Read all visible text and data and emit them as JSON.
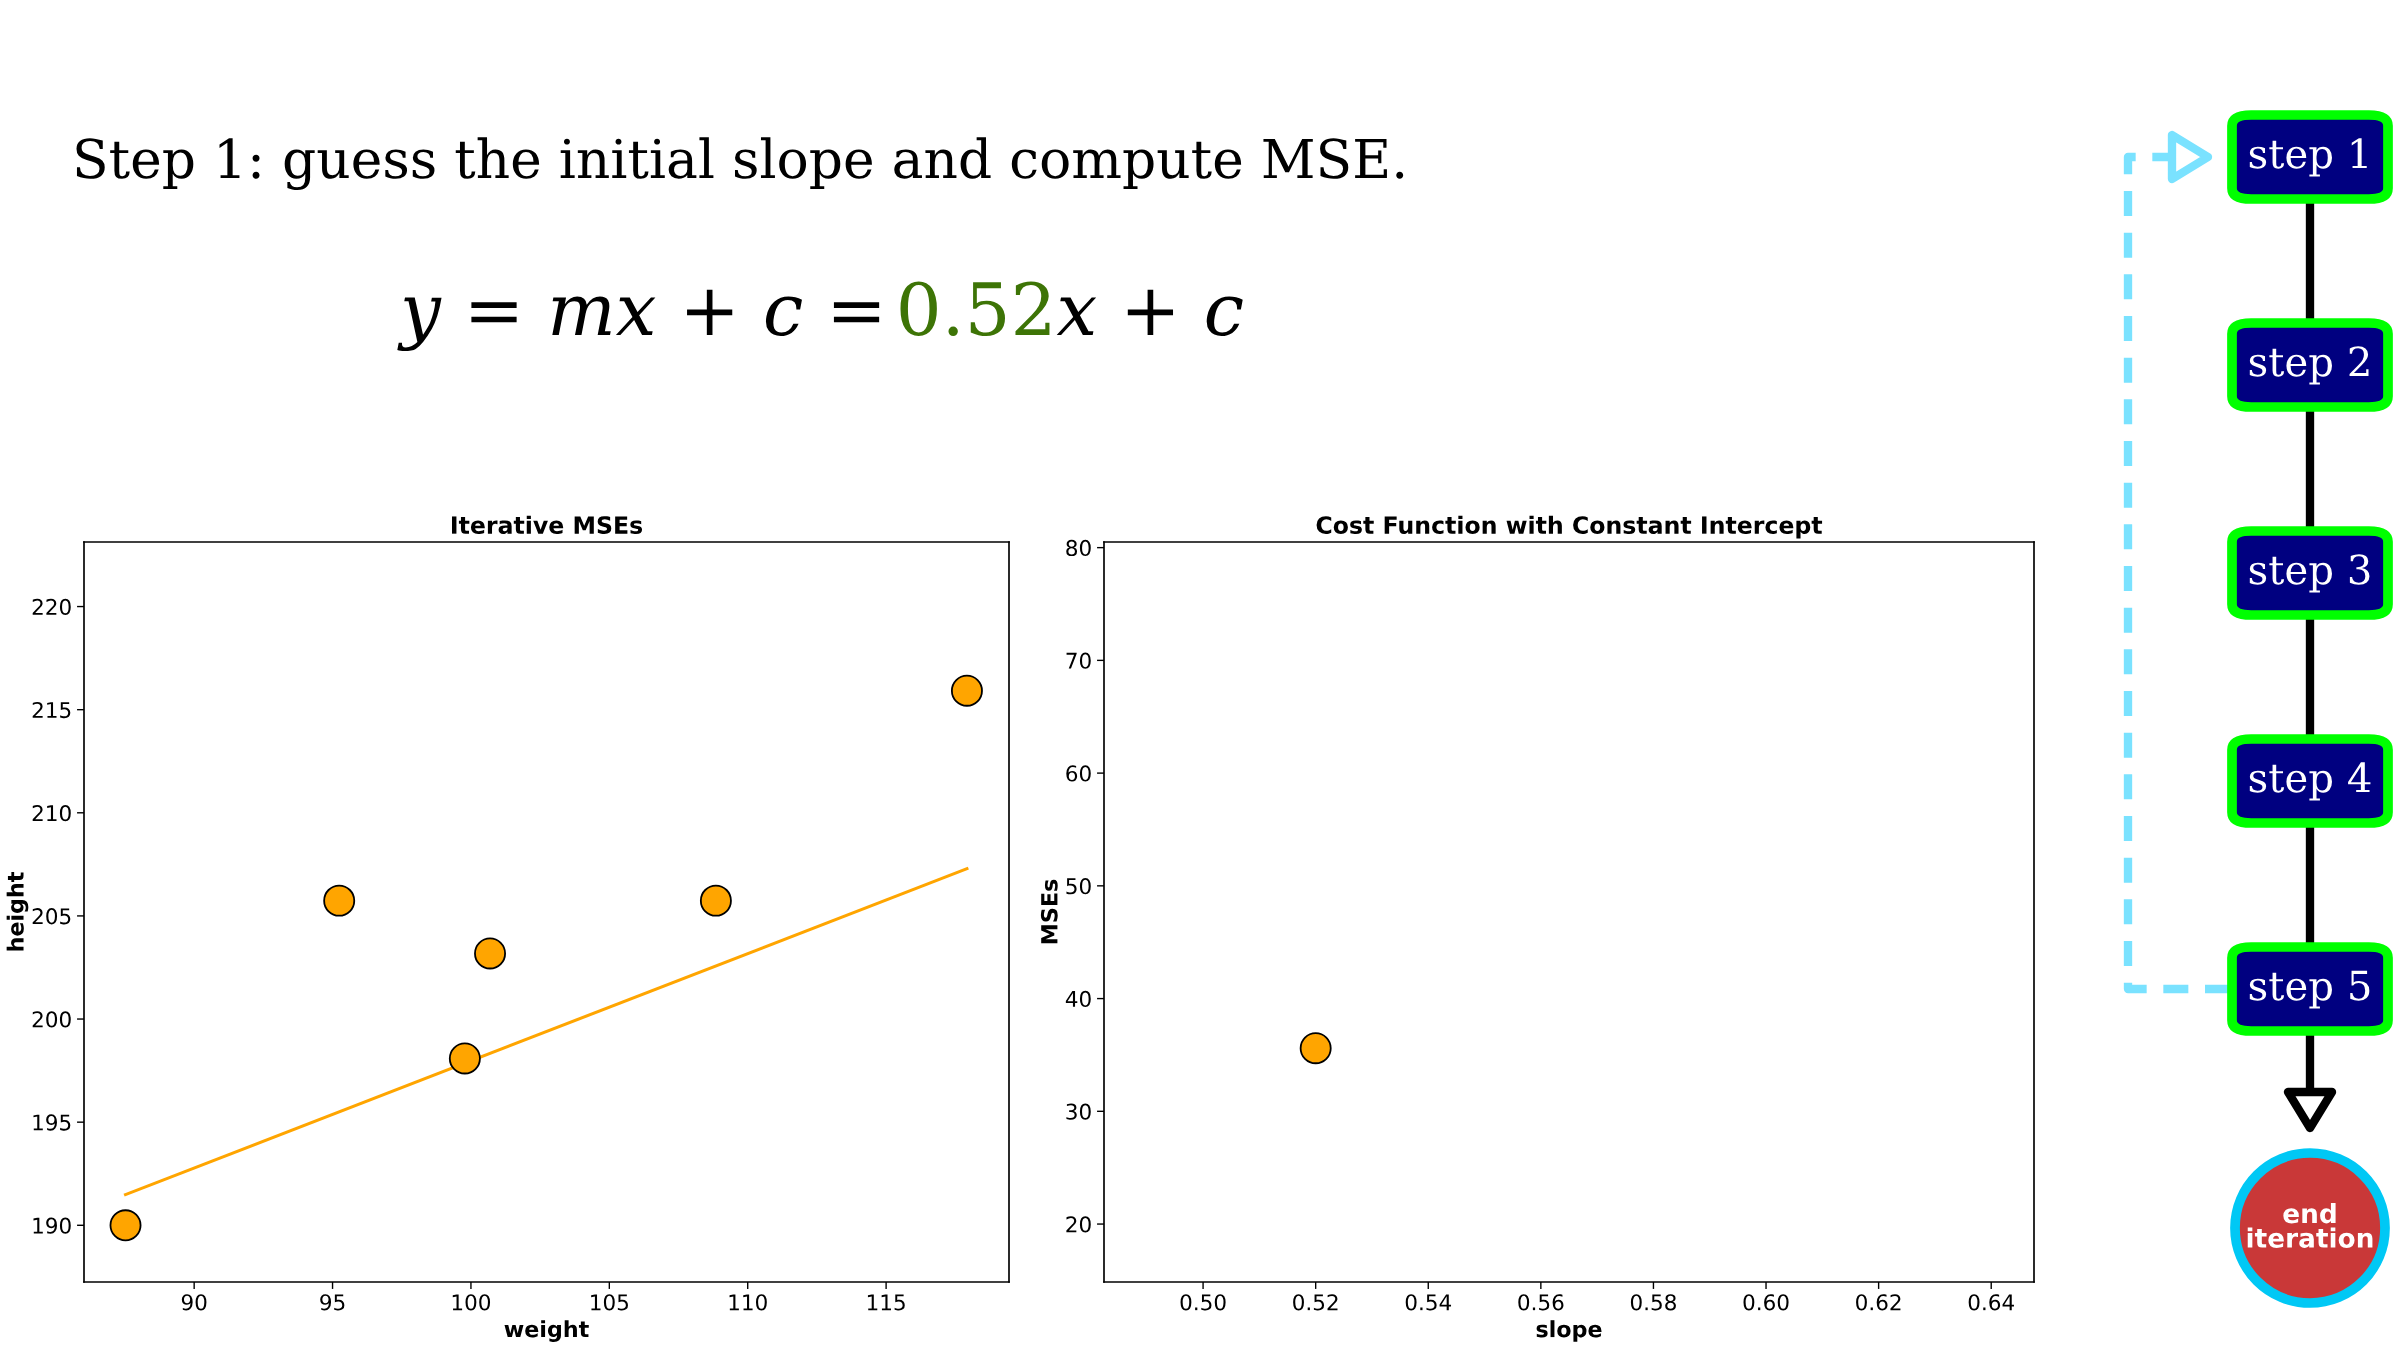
{
  "chart_data": [
    {
      "type": "scatter",
      "title": "Iterative MSEs",
      "xlabel": "weight",
      "ylabel": "height",
      "marker": "circle",
      "grid": false,
      "legend": false,
      "xlim": [
        86.02,
        119.44
      ],
      "ylim": [
        187.25,
        223.13
      ],
      "xticks": [
        90,
        95,
        100,
        105,
        110,
        115
      ],
      "yticks": [
        190,
        195,
        200,
        205,
        210,
        215,
        220
      ],
      "series": [
        {
          "type": "line",
          "x": [
            87.52,
            117.92
          ],
          "values": [
            191.49,
            207.29
          ],
          "color": "#ffa500",
          "marker": "none"
        },
        {
          "type": "scatter",
          "x": [
            87.52,
            95.24,
            100.69,
            99.78,
            108.85,
            117.92
          ],
          "values": [
            190.0,
            205.74,
            203.18,
            198.09,
            205.74,
            215.92
          ],
          "color": "#ffa500"
        }
      ]
    },
    {
      "type": "scatter",
      "title": "Cost Function with Constant Intercept",
      "xlabel": "slope",
      "ylabel": "MSEs",
      "marker": "circle",
      "grid": false,
      "legend": false,
      "xlim": [
        0.4824,
        0.6476
      ],
      "ylim": [
        14.86,
        80.5
      ],
      "xticks": [
        {
          "value": 0.5,
          "label": "0.50"
        },
        {
          "value": 0.52,
          "label": "0.52"
        },
        {
          "value": 0.54,
          "label": "0.54"
        },
        {
          "value": 0.56,
          "label": "0.56"
        },
        {
          "value": 0.58,
          "label": "0.58"
        },
        {
          "value": 0.6,
          "label": "0.60"
        },
        {
          "value": 0.62,
          "label": "0.62"
        },
        {
          "value": 0.64,
          "label": "0.64"
        }
      ],
      "yticks": [
        20,
        30,
        40,
        50,
        60,
        70,
        80
      ],
      "series": [
        {
          "type": "scatter",
          "x": [
            0.52
          ],
          "values": [
            35.6
          ],
          "color": "#ffa500"
        }
      ]
    },
    {
      "type": "other",
      "annotations": [
        "Step 1: guess the initial slope and compute MSE.",
        "y = mx + c = ",
        "0.52",
        "x + c",
        "step 1",
        "step 2",
        "step 3",
        "step 4",
        "step 5",
        "end\niteration"
      ]
    }
  ]
}
